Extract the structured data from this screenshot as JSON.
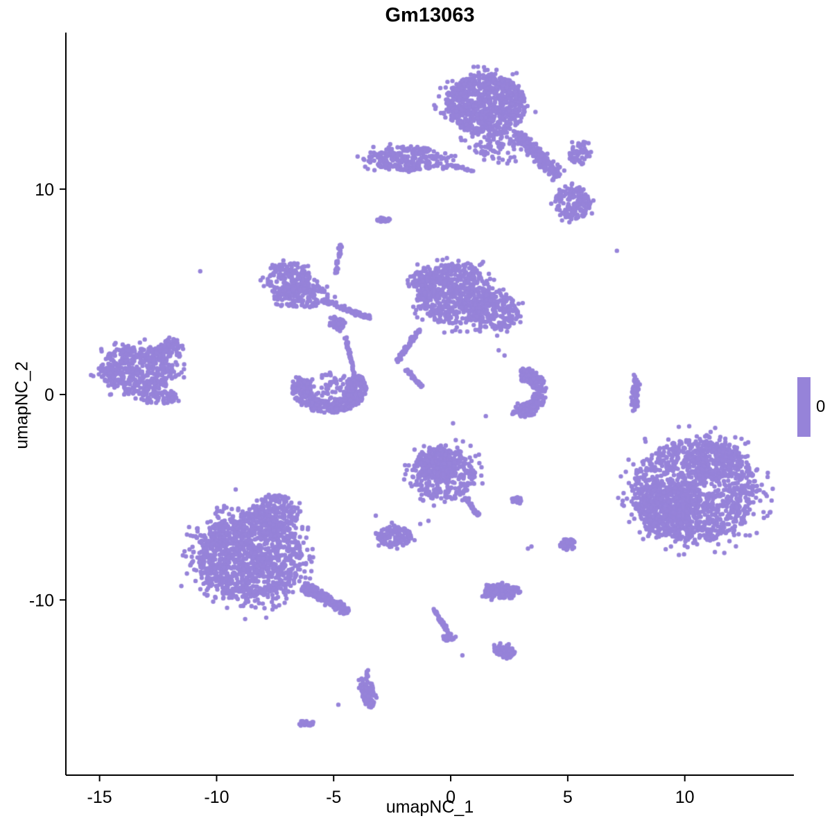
{
  "chart_data": {
    "type": "scatter",
    "title": "Gm13063",
    "xlabel": "umapNC_1",
    "ylabel": "umapNC_2",
    "x_ticks": [
      -15,
      -10,
      -5,
      0,
      5,
      10
    ],
    "y_ticks": [
      -10,
      0,
      10
    ],
    "xlim": [
      -16.44,
      14.66
    ],
    "ylim": [
      -18.53,
      17.62
    ],
    "grid": false,
    "legend_position": "right",
    "point_color": "#9683D9",
    "point_radius": 3.2,
    "axis_color": "#000000",
    "legend": {
      "label": "0",
      "color": "#9683D9"
    },
    "clusters": [
      {
        "n": 850,
        "cx": 1.5,
        "cy": 14.1,
        "rx": 1.7,
        "ry": 1.5
      },
      {
        "n": 90,
        "cx": 2.2,
        "cy": 12.1,
        "rx": 1.2,
        "ry": 0.9
      },
      {
        "shape": "line",
        "n": 200,
        "x1": 2.9,
        "y1": 12.7,
        "x2": 4.6,
        "y2": 10.6,
        "w": 0.45
      },
      {
        "n": 160,
        "cx": 5.2,
        "cy": 9.3,
        "rx": 0.75,
        "ry": 0.8
      },
      {
        "n": 60,
        "cx": 5.5,
        "cy": 11.7,
        "rx": 0.45,
        "ry": 0.55
      },
      {
        "n": 260,
        "cx": -1.9,
        "cy": 11.5,
        "rx": 1.7,
        "ry": 0.6
      },
      {
        "shape": "line",
        "n": 22,
        "x1": -0.2,
        "y1": 11.2,
        "x2": 1.0,
        "y2": 10.9,
        "w": 0.15
      },
      {
        "n": 22,
        "cx": -2.9,
        "cy": 8.5,
        "rx": 0.3,
        "ry": 0.13
      },
      {
        "n": 200,
        "cx": -6.9,
        "cy": 5.6,
        "rx": 0.95,
        "ry": 0.85
      },
      {
        "n": 150,
        "cx": -6.3,
        "cy": 4.8,
        "rx": 1.05,
        "ry": 0.6
      },
      {
        "shape": "line",
        "n": 100,
        "x1": -5.5,
        "y1": 4.6,
        "x2": -3.4,
        "y2": 3.7,
        "w": 0.16
      },
      {
        "shape": "line",
        "n": 40,
        "x1": -4.7,
        "y1": 7.3,
        "x2": -4.9,
        "y2": 5.9,
        "w": 0.09
      },
      {
        "n": 70,
        "cx": -4.85,
        "cy": 3.45,
        "rx": 0.32,
        "ry": 0.3
      },
      {
        "shape": "line",
        "n": 50,
        "x1": -4.5,
        "y1": 2.8,
        "x2": -4.1,
        "y2": 0.9,
        "w": 0.08
      },
      {
        "n": 550,
        "cx": 0.2,
        "cy": 4.9,
        "rx": 1.55,
        "ry": 1.5
      },
      {
        "n": 250,
        "cx": 1.9,
        "cy": 4.0,
        "rx": 1.0,
        "ry": 0.9
      },
      {
        "n": 120,
        "cx": -0.9,
        "cy": 5.6,
        "rx": 0.75,
        "ry": 0.7
      },
      {
        "shape": "line",
        "n": 70,
        "x1": -1.3,
        "y1": 3.2,
        "x2": -2.3,
        "y2": 1.6,
        "w": 0.13
      },
      {
        "shape": "line",
        "n": 50,
        "x1": -1.9,
        "y1": 1.2,
        "x2": -1.2,
        "y2": 0.35,
        "w": 0.1
      },
      {
        "n": 500,
        "cx": -13.4,
        "cy": 1.2,
        "rx": 1.6,
        "ry": 1.2
      },
      {
        "n": 70,
        "cx": -12.0,
        "cy": 2.3,
        "rx": 0.55,
        "ry": 0.5
      },
      {
        "n": 60,
        "cx": -12.4,
        "cy": -0.15,
        "rx": 0.7,
        "ry": 0.3
      },
      {
        "shape": "ring",
        "n": 430,
        "cx": -5.2,
        "cy": 0.3,
        "rx": 1.6,
        "ry": 1.2,
        "a0": 150,
        "a1": 395,
        "inner": 0.5
      },
      {
        "n": 60,
        "cx": -5.0,
        "cy": 0.4,
        "rx": 0.8,
        "ry": 0.7
      },
      {
        "shape": "ring",
        "n": 270,
        "cx": 3.1,
        "cy": 0.1,
        "rx": 1.0,
        "ry": 1.2,
        "a0": -120,
        "a1": 100,
        "inner": 0.45
      },
      {
        "n": 65,
        "cx": 7.9,
        "cy": 0.0,
        "rx": 0.16,
        "ry": 0.8
      },
      {
        "n": 1250,
        "cx": 10.4,
        "cy": -4.7,
        "rx": 2.7,
        "ry": 2.5
      },
      {
        "n": 350,
        "cx": 9.2,
        "cy": -5.6,
        "rx": 1.2,
        "ry": 1.3
      },
      {
        "n": 200,
        "cx": 11.2,
        "cy": -3.2,
        "rx": 1.3,
        "ry": 0.95
      },
      {
        "n": 400,
        "cx": -0.3,
        "cy": -3.8,
        "rx": 1.35,
        "ry": 1.35
      },
      {
        "n": 150,
        "cx": -0.5,
        "cy": -3.4,
        "rx": 0.7,
        "ry": 0.6
      },
      {
        "shape": "line",
        "n": 50,
        "x1": 0.6,
        "y1": -5.0,
        "x2": 1.2,
        "y2": -5.9,
        "w": 0.12
      },
      {
        "n": 120,
        "cx": -2.4,
        "cy": -6.9,
        "rx": 0.72,
        "ry": 0.52
      },
      {
        "n": 20,
        "cx": 2.85,
        "cy": -5.15,
        "rx": 0.25,
        "ry": 0.18
      },
      {
        "n": 40,
        "cx": 5.0,
        "cy": -7.3,
        "rx": 0.34,
        "ry": 0.28
      },
      {
        "n": 1200,
        "cx": -8.6,
        "cy": -7.9,
        "rx": 2.25,
        "ry": 2.1
      },
      {
        "n": 180,
        "cx": -7.4,
        "cy": -5.7,
        "rx": 0.95,
        "ry": 0.8
      },
      {
        "n": 140,
        "cx": -8.6,
        "cy": -7.9,
        "rx": 2.85,
        "ry": 2.6
      },
      {
        "shape": "line",
        "n": 250,
        "x1": -6.3,
        "y1": -9.3,
        "x2": -4.4,
        "y2": -10.6,
        "w": 0.35
      },
      {
        "n": 130,
        "cx": 2.2,
        "cy": -9.6,
        "rx": 0.78,
        "ry": 0.36
      },
      {
        "shape": "line",
        "n": 50,
        "x1": -0.75,
        "y1": -10.4,
        "x2": -0.1,
        "y2": -11.6,
        "w": 0.1
      },
      {
        "n": 30,
        "cx": -0.1,
        "cy": -11.8,
        "rx": 0.27,
        "ry": 0.2
      },
      {
        "n": 70,
        "cx": 2.3,
        "cy": -12.5,
        "rx": 0.48,
        "ry": 0.3,
        "rot": -25
      },
      {
        "n": 100,
        "cx": -3.55,
        "cy": -14.4,
        "rx": 0.28,
        "ry": 0.88,
        "rot": 8
      },
      {
        "n": 22,
        "cx": -6.15,
        "cy": -16.0,
        "rx": 0.36,
        "ry": 0.13
      }
    ],
    "singles": [
      [
        7.1,
        7.0
      ],
      [
        -10.7,
        6.0
      ],
      [
        -4.8,
        -15.1
      ],
      [
        0.5,
        -12.7
      ],
      [
        0.1,
        -1.4
      ],
      [
        1.5,
        -1.05
      ],
      [
        -1.3,
        -6.3
      ],
      [
        -0.95,
        -6.15
      ],
      [
        2.05,
        2.15
      ],
      [
        2.3,
        1.9
      ],
      [
        -3.2,
        -5.9
      ],
      [
        3.3,
        -7.5
      ],
      [
        3.45,
        -7.4
      ]
    ]
  }
}
